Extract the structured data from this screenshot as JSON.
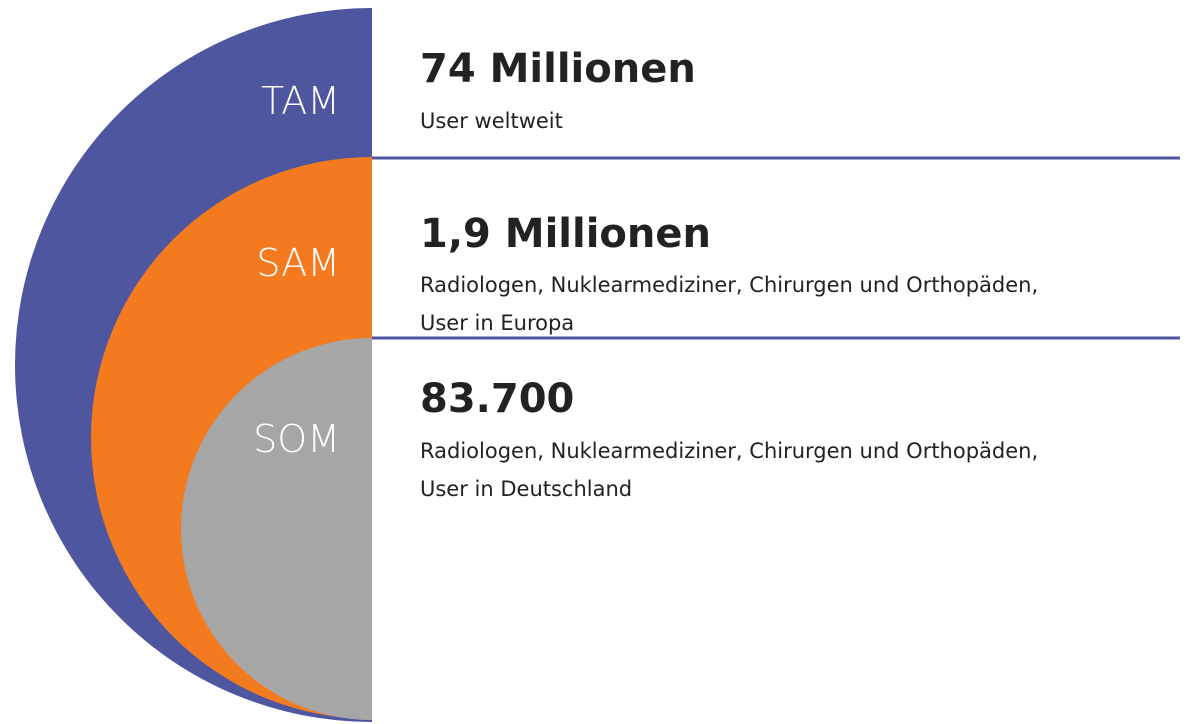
{
  "sections": [
    {
      "label": "TAM",
      "headline": "74 Millionen",
      "lines": [
        "User weltweit"
      ]
    },
    {
      "label": "SAM",
      "headline": "1,9 Millionen",
      "lines": [
        "Radiologen, Nuklearmediziner, Chirurgen und Orthopäden,",
        "User in Europa"
      ]
    },
    {
      "label": "SOM",
      "headline": "83.700",
      "lines": [
        "Radiologen, Nuklearmediziner, Chirurgen und Orthopäden,",
        "User in Deutschland"
      ]
    }
  ]
}
